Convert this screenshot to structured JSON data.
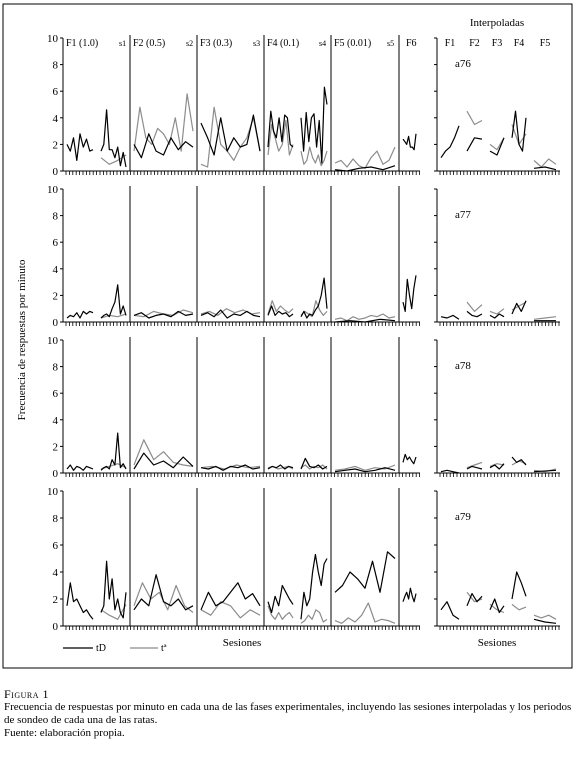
{
  "figure": {
    "interp_header": "Interpoladas",
    "ylabel": "Frecuencia de respuestas por minuto",
    "xlabel_main": "Sesiones",
    "xlabel_interp": "Sesiones",
    "legend": [
      {
        "label": "tD",
        "color": "#000000"
      },
      {
        "label": "tª",
        "color": "#8c8c8c"
      }
    ],
    "phase_labels": [
      "F1 (1.0)",
      "s1",
      "F2 (0.5)",
      "s2",
      "F3 (0.3)",
      "s3",
      "F4 (0.1)",
      "s4",
      "F5 (0.01)",
      "s5",
      "F6"
    ],
    "interp_phase_labels": [
      "F1",
      "F2",
      "F3",
      "F4",
      "F5"
    ],
    "y_ticks": [
      "0",
      "2",
      "4",
      "6",
      "8",
      "10"
    ]
  },
  "caption": {
    "label": "Figura 1",
    "text": "Frecuencia de respuestas por minuto en cada una de las fases experimentales, incluyendo las sesiones interpoladas y los periodos de sondeo de cada una de las ratas.",
    "source": "Fuente: elaboración propia."
  },
  "chart_data": {
    "type": "line",
    "ylim": [
      0,
      10
    ],
    "subjects": [
      {
        "name": "a76",
        "main": {
          "tD": [
            [
              2.0,
              1.5,
              2.5,
              0.8,
              2.8,
              1.8,
              2.4,
              1.5,
              1.6
            ],
            [
              1.5,
              2.0,
              4.6,
              1.6,
              1.6,
              1.0,
              1.8,
              0.4,
              1.4,
              0.3
            ],
            [
              2.0,
              1.0,
              2.8,
              1.5,
              1.2,
              2.5,
              1.6,
              2.2,
              1.8
            ],
            [
              3.6,
              2.5,
              1.2,
              4.0,
              1.5,
              2.5,
              1.8,
              2.0,
              4.2,
              1.5
            ],
            [
              1.8,
              4.5,
              3.0,
              2.5,
              4.0,
              2.2,
              4.2,
              4.0,
              2.0,
              1.8
            ],
            [
              4.0,
              1.5,
              4.4,
              2.2,
              4.0,
              4.3,
              1.8,
              3.8,
              0.6,
              6.3,
              5.0
            ],
            [
              0.1,
              0.0,
              0.2,
              0.3,
              0.1,
              0.4
            ],
            [
              2.4,
              2.2,
              2.0,
              2.6,
              1.8,
              1.8,
              1.6,
              2.8
            ]
          ],
          "ta": [
            [],
            [
              1.0,
              0.5,
              0.8,
              1.2
            ],
            [
              1.5,
              4.8,
              2.5,
              2.0,
              3.2,
              2.8,
              2.0,
              4.0,
              1.5,
              5.8,
              3.0
            ],
            [
              0.5,
              0.3,
              4.8,
              2.0,
              1.5,
              0.8,
              1.8,
              2.5,
              4.0,
              1.5
            ],
            [
              1.2,
              3.5,
              2.5,
              1.5,
              2.0,
              3.8,
              1.2,
              2.0
            ],
            [
              1.5,
              0.5,
              0.8,
              1.8,
              1.0,
              0.6,
              1.2,
              0.4,
              0.8,
              1.5
            ],
            [
              0.6,
              0.8,
              0.3,
              0.9,
              0.4,
              0.2,
              1.0,
              1.5,
              0.5,
              0.8,
              1.8
            ],
            []
          ]
        },
        "interp": {
          "tD": [
            [
              1.0,
              1.5,
              1.8,
              2.5,
              3.4
            ],
            [
              1.5,
              2.5,
              2.4
            ],
            [
              1.5,
              1.2,
              2.5
            ],
            [
              2.5,
              4.5,
              2.0,
              1.5,
              4.0
            ],
            [
              0.2,
              0.3,
              0.1
            ]
          ],
          "ta": [
            [],
            [
              4.5,
              3.5,
              3.8
            ],
            [
              2.0,
              1.6,
              2.5
            ],
            [
              3.5,
              2.0,
              2.8
            ],
            [
              0.8,
              0.3,
              0.9,
              0.5
            ]
          ]
        }
      },
      {
        "name": "a77",
        "main": {
          "tD": [
            [
              0.3,
              0.5,
              0.4,
              0.7,
              0.3,
              0.8,
              0.6,
              0.8,
              0.7
            ],
            [
              0.3,
              0.5,
              0.6,
              0.4,
              1.0,
              1.5,
              2.8,
              0.6,
              1.2,
              0.5
            ],
            [
              0.5,
              0.7,
              0.3,
              0.5,
              0.6,
              0.4,
              0.8,
              0.5,
              0.6
            ],
            [
              0.5,
              0.7,
              0.4,
              0.9,
              0.3,
              0.6,
              0.5,
              0.8,
              0.5,
              0.4
            ],
            [
              0.5,
              1.2,
              0.5,
              0.8,
              0.6,
              0.7,
              0.4,
              0.6
            ],
            [
              0.4,
              0.8,
              0.3,
              0.6,
              0.5,
              0.9,
              1.2,
              2.0,
              3.3,
              1.0
            ],
            [
              0.0,
              0.1,
              0.0,
              0.2,
              0.1
            ],
            [
              1.5,
              0.8,
              3.2,
              2.0,
              1.0,
              2.5,
              3.5
            ]
          ],
          "ta": [
            [],
            [
              0.3,
              0.5,
              0.4,
              0.6
            ],
            [
              0.5,
              0.4,
              0.8,
              0.6,
              0.5,
              0.9,
              0.7
            ],
            [
              0.6,
              0.8,
              0.5,
              1.0,
              0.7,
              0.9,
              0.6,
              0.7
            ],
            [
              0.6,
              1.6,
              0.8,
              1.2,
              0.9,
              0.7,
              1.0
            ],
            [
              0.5,
              0.8,
              0.6,
              0.4,
              1.6,
              0.9,
              0.5,
              0.8
            ],
            [
              0.2,
              0.3,
              0.1,
              0.4,
              0.2,
              0.3,
              0.5,
              0.4,
              0.6,
              0.3,
              0.4
            ],
            []
          ]
        },
        "interp": {
          "tD": [
            [
              0.4,
              0.3,
              0.5,
              0.2
            ],
            [
              0.8,
              0.5,
              0.4,
              0.6
            ],
            [
              0.5,
              0.3,
              0.6,
              0.4
            ],
            [
              0.6,
              1.4,
              0.8,
              1.6
            ],
            [
              0.1,
              0.1
            ]
          ],
          "ta": [
            [],
            [
              1.5,
              0.8,
              1.3
            ],
            [
              0.8,
              0.6,
              1.0
            ],
            [
              0.9,
              1.2,
              1.5
            ],
            [
              0.2,
              0.3,
              0.4
            ]
          ]
        }
      },
      {
        "name": "a78",
        "main": {
          "tD": [
            [
              0.3,
              0.6,
              0.2,
              0.5,
              0.4,
              0.2,
              0.5,
              0.4,
              0.3
            ],
            [
              0.2,
              0.4,
              0.5,
              0.3,
              1.0,
              0.6,
              3.0,
              0.4,
              0.7,
              0.3
            ],
            [
              0.3,
              1.5,
              0.6,
              0.9,
              0.4,
              1.2,
              0.5
            ],
            [
              0.4,
              0.3,
              0.5,
              0.2,
              0.5,
              0.4,
              0.6,
              0.3,
              0.4
            ],
            [
              0.3,
              0.5,
              0.4,
              0.6,
              0.3,
              0.5,
              0.4
            ],
            [
              0.3,
              1.1,
              0.5,
              0.4,
              0.6,
              0.3,
              0.5
            ],
            [
              0.1,
              0.2,
              0.3,
              0.1,
              0.2,
              0.4,
              0.2
            ],
            [
              0.8,
              1.4,
              1.0,
              1.2,
              0.9,
              0.7,
              1.2
            ]
          ],
          "ta": [
            [],
            [
              0.3,
              0.5,
              0.7,
              0.4
            ],
            [
              0.6,
              2.5,
              1.0,
              1.6,
              0.8,
              0.6,
              0.5
            ],
            [
              0.4,
              0.5,
              0.3,
              0.6,
              0.4,
              0.5
            ],
            [
              0.4,
              0.5,
              0.3,
              0.4,
              0.5,
              0.3
            ],
            [
              0.4,
              0.6,
              0.3,
              0.5,
              0.4,
              0.6,
              0.3
            ],
            [
              0.2,
              0.3,
              0.5,
              0.2,
              0.4,
              0.3,
              0.6
            ],
            []
          ]
        },
        "interp": {
          "tD": [
            [
              0.1,
              0.2,
              0.1,
              0.0
            ],
            [
              0.3,
              0.5,
              0.4,
              0.3
            ],
            [
              0.4,
              0.6,
              0.3,
              0.7
            ],
            [
              1.2,
              0.8,
              1.0,
              0.6
            ],
            [
              0.1,
              0.2
            ]
          ],
          "ta": [
            [],
            [
              0.4,
              0.6,
              0.8
            ],
            [
              0.5,
              0.7,
              0.6
            ],
            [
              0.6,
              0.9,
              0.7
            ],
            [
              0.2,
              0.1,
              0.3
            ]
          ]
        }
      },
      {
        "name": "a79",
        "main": {
          "tD": [
            [
              1.5,
              3.2,
              1.8,
              2.0,
              1.5,
              1.0,
              1.2,
              0.8,
              0.5
            ],
            [
              1.0,
              1.5,
              4.8,
              2.0,
              3.5,
              1.2,
              2.0,
              1.0,
              0.6,
              2.5
            ],
            [
              1.2,
              2.0,
              1.5,
              3.8,
              1.8,
              1.5,
              2.0,
              1.2,
              1.5
            ],
            [
              1.2,
              2.5,
              1.5,
              1.8,
              2.5,
              3.2,
              2.0,
              2.4,
              1.5
            ],
            [
              1.8,
              1.0,
              2.2,
              1.5,
              3.0,
              2.5,
              2.0,
              1.6
            ],
            [
              0.5,
              2.5,
              1.5,
              2.0,
              4.0,
              5.3,
              4.0,
              3.0,
              4.6,
              5.0
            ],
            [
              2.5,
              3.0,
              4.0,
              3.5,
              2.8,
              4.8,
              2.5,
              5.5,
              5.0
            ],
            [
              1.8,
              2.2,
              2.5,
              2.0,
              2.8,
              2.2,
              1.8,
              2.4
            ]
          ],
          "ta": [
            [],
            [
              1.2,
              0.8,
              0.5,
              1.6
            ],
            [
              1.5,
              3.2,
              2.0,
              2.5,
              1.2,
              3.0,
              1.5,
              1.0
            ],
            [
              1.2,
              0.8,
              1.8,
              1.5,
              0.6,
              1.2,
              0.8
            ],
            [
              1.5,
              0.8,
              0.5,
              1.0,
              0.5,
              0.8,
              1.0,
              0.6
            ],
            [
              0.2,
              0.4,
              0.8,
              0.5,
              1.2,
              1.0,
              0.3,
              0.5
            ],
            [
              0.4,
              0.2,
              0.6,
              0.3,
              0.8,
              1.7,
              0.3,
              0.5,
              0.4,
              0.2
            ],
            []
          ]
        },
        "interp": {
          "tD": [
            [
              1.2,
              1.8,
              0.8,
              0.5
            ],
            [
              1.5,
              2.4,
              1.8,
              2.2
            ],
            [
              1.2,
              2.0,
              1.0,
              1.5
            ],
            [
              2.0,
              4.0,
              3.2,
              2.2
            ],
            [
              0.5,
              0.3,
              0.2
            ]
          ],
          "ta": [
            [],
            [
              2.5,
              1.8,
              2.0
            ],
            [
              1.6,
              1.2,
              1.0
            ],
            [
              1.6,
              1.2,
              1.4
            ],
            [
              0.8,
              0.6,
              0.8,
              0.5
            ]
          ]
        }
      }
    ]
  }
}
